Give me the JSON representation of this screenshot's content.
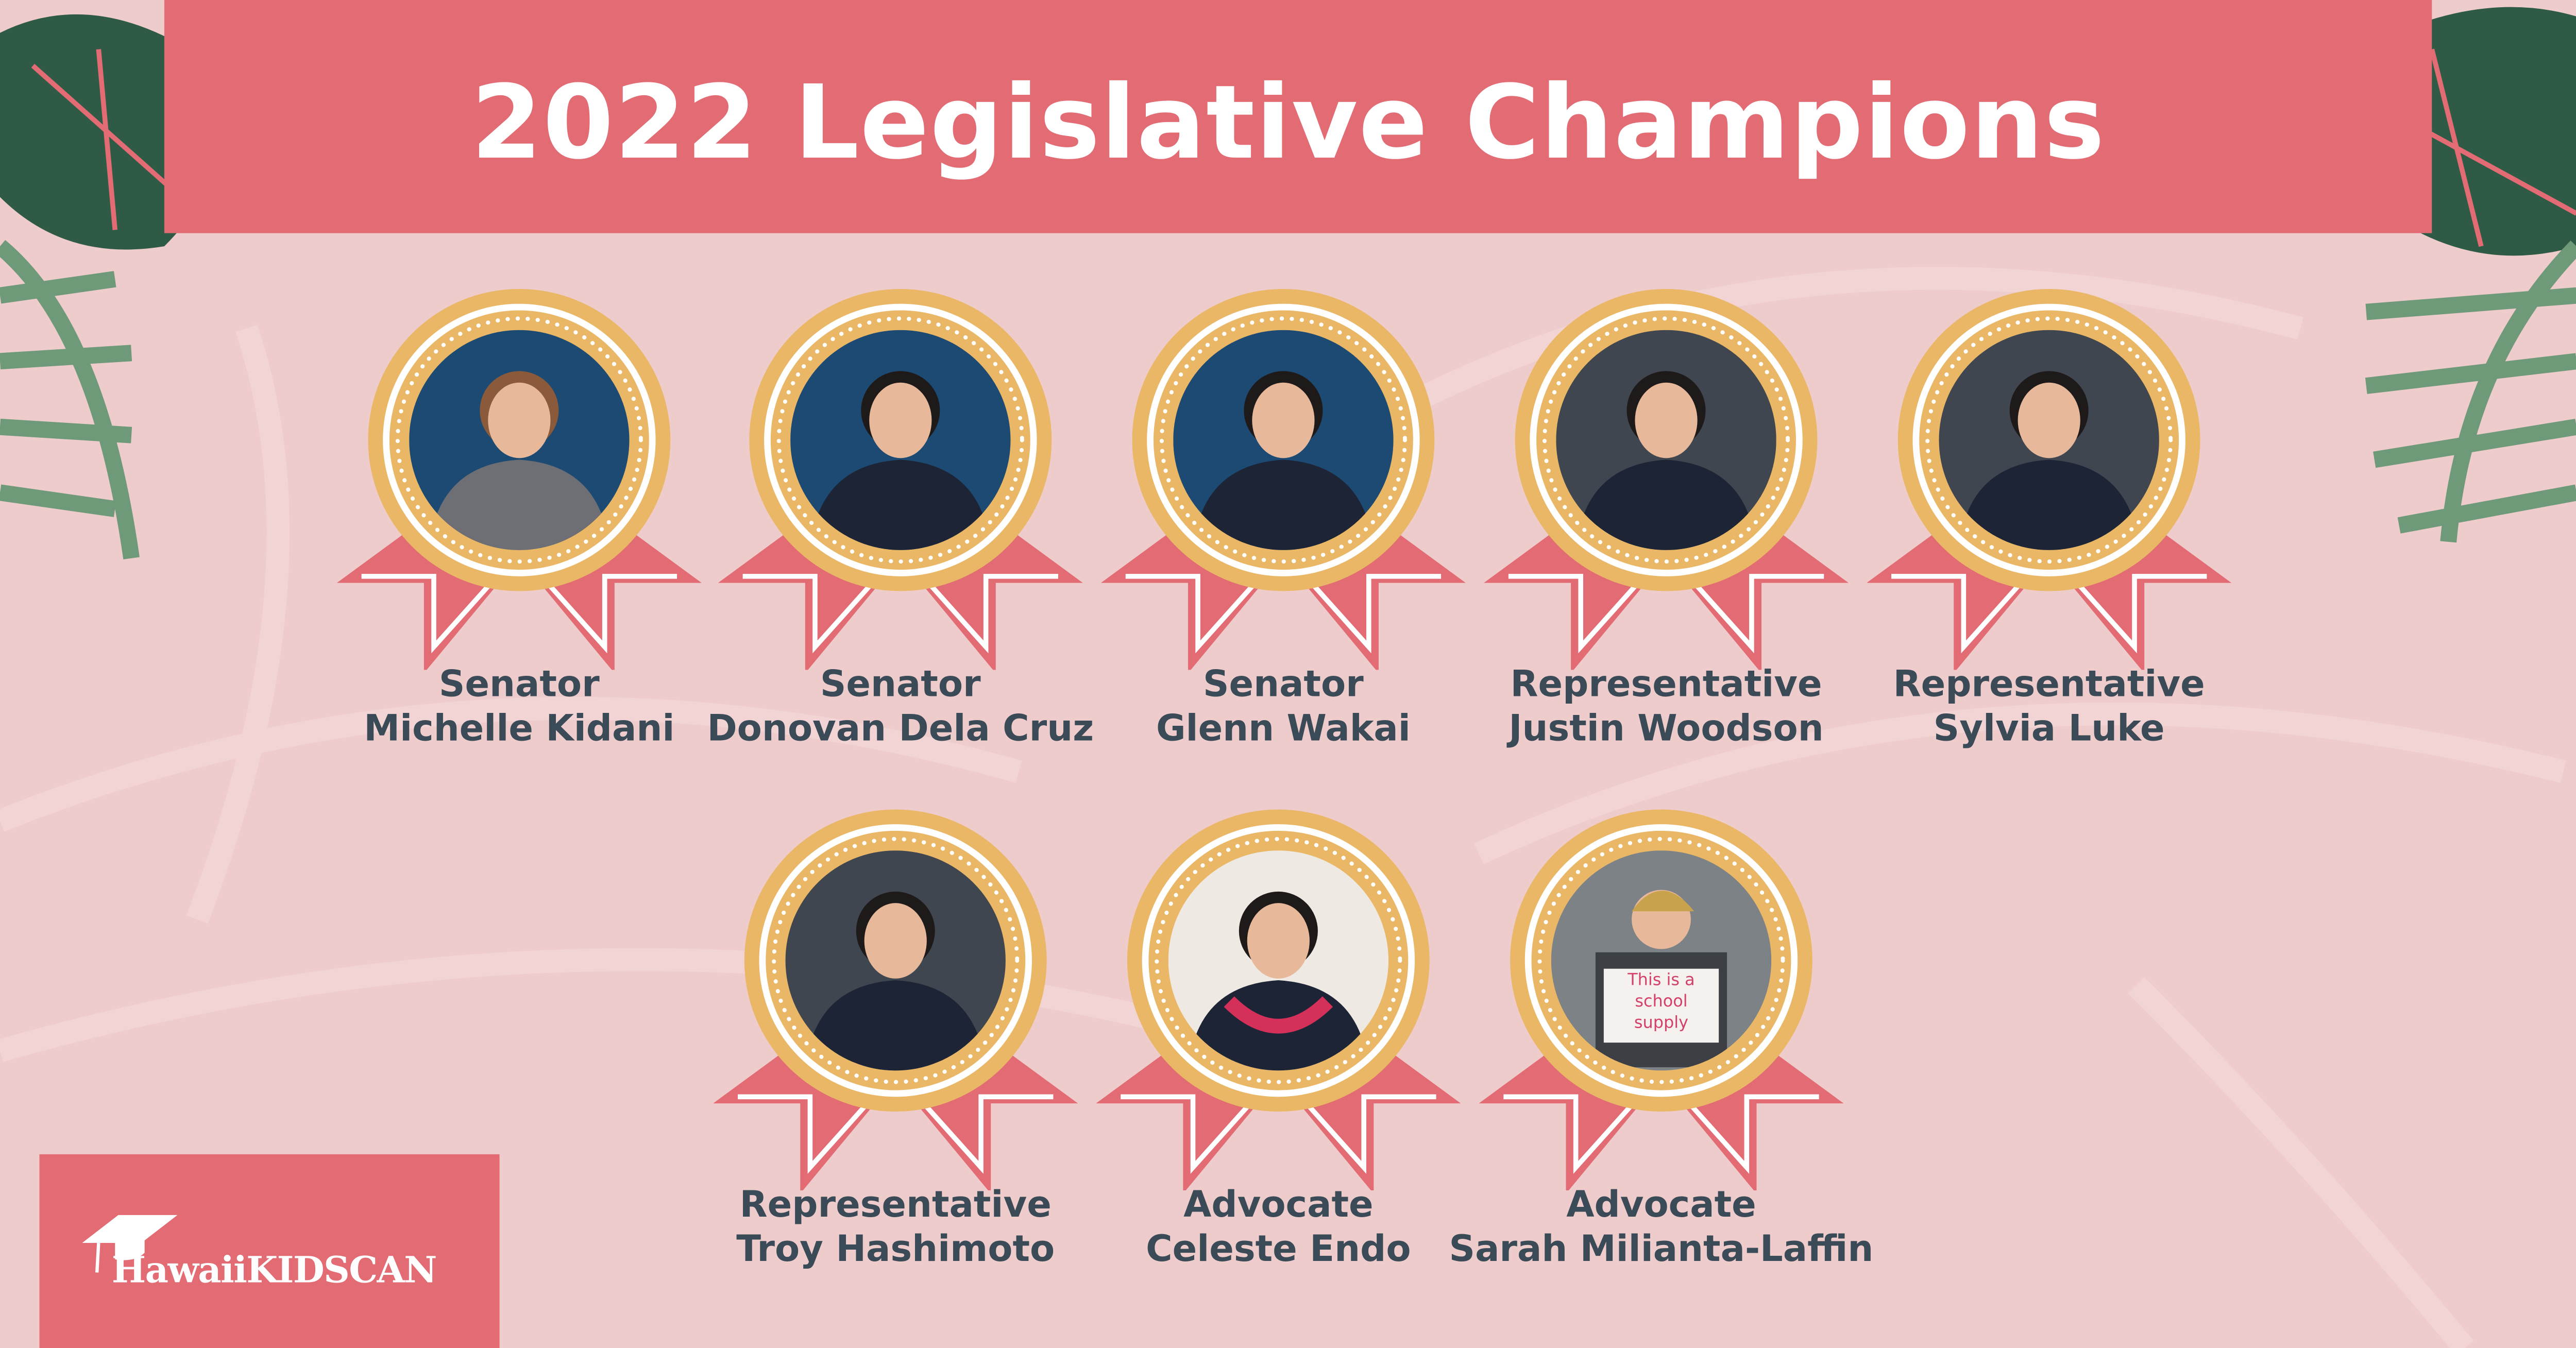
{
  "header": {
    "title": "2022 Legislative Champions"
  },
  "colors": {
    "background": "#efcccc",
    "banner": "#e26b74",
    "medal_gold": "#e9b765",
    "ribbon": "#e26b74",
    "text": "#3a4a56",
    "leaf_dark": "#2f5b46",
    "leaf_light": "#6f9a7a"
  },
  "champions": [
    {
      "title": "Senator",
      "name": "Michelle Kidani",
      "photo": "portrait-woman"
    },
    {
      "title": "Senator",
      "name": "Donovan Dela Cruz",
      "photo": "portrait-man"
    },
    {
      "title": "Senator",
      "name": "Glenn Wakai",
      "photo": "portrait-man"
    },
    {
      "title": "Representative",
      "name": "Justin Woodson",
      "photo": "portrait-man"
    },
    {
      "title": "Representative",
      "name": "Sylvia Luke",
      "photo": "portrait-woman"
    },
    {
      "title": "Representative",
      "name": "Troy Hashimoto",
      "photo": "portrait-man"
    },
    {
      "title": "Advocate",
      "name": "Celeste Endo",
      "photo": "portrait-woman-lei"
    },
    {
      "title": "Advocate",
      "name": "Sarah Milianta-Laffin",
      "photo": "portrait-woman-sign",
      "sign_text": "This is a school supply"
    }
  ],
  "logo": {
    "text": "HawaiiKIDSCAN",
    "icon": "graduation-cap-icon"
  }
}
